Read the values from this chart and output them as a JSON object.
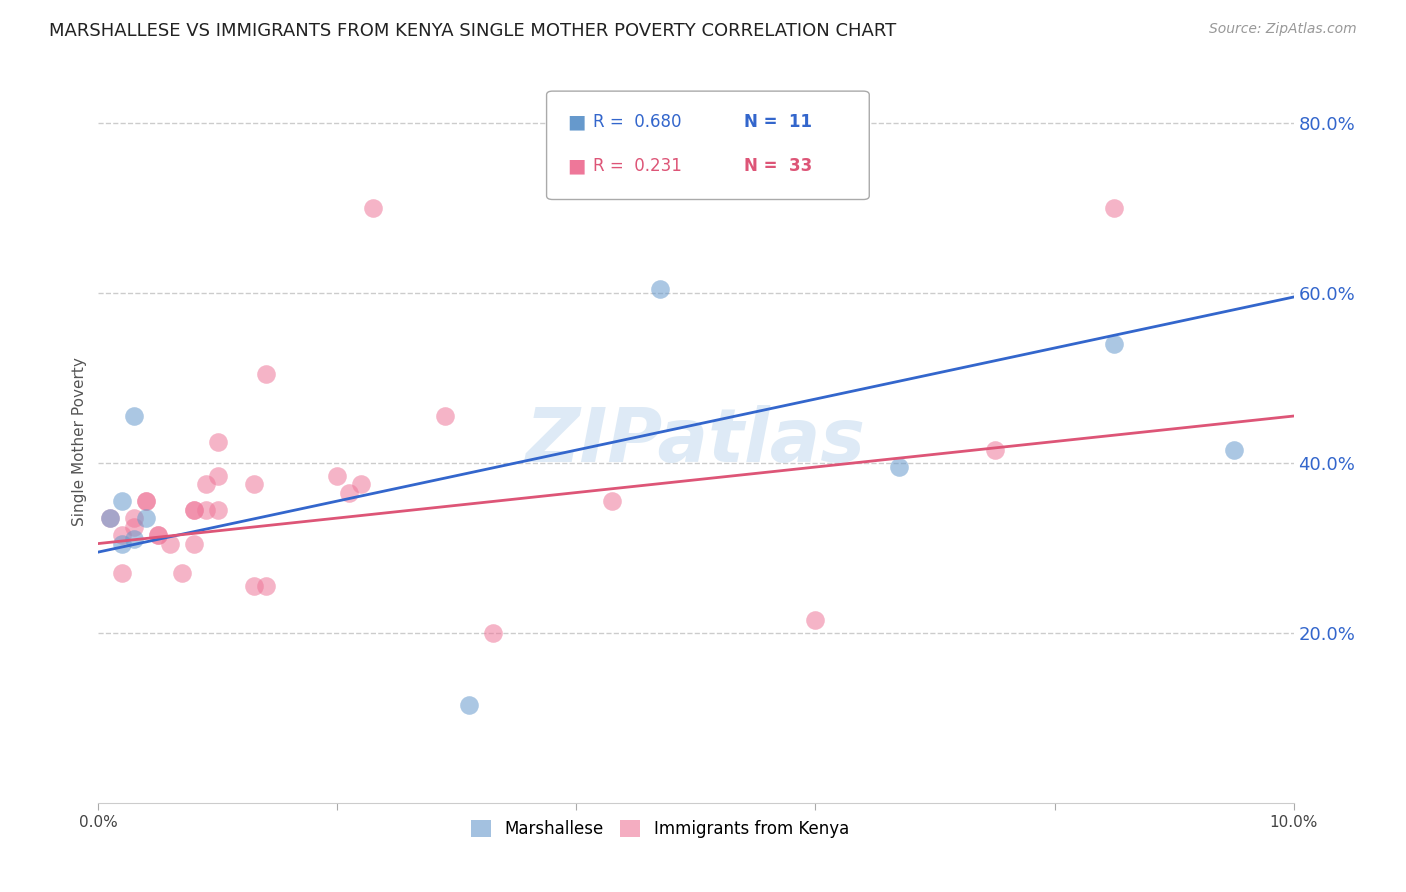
{
  "title": "MARSHALLESE VS IMMIGRANTS FROM KENYA SINGLE MOTHER POVERTY CORRELATION CHART",
  "source": "Source: ZipAtlas.com",
  "ylabel": "Single Mother Poverty",
  "watermark": "ZIPatlas",
  "legend_blue_r": "0.680",
  "legend_blue_n": "11",
  "legend_pink_r": "0.231",
  "legend_pink_n": "33",
  "blue_scatter_x": [
    0.001,
    0.002,
    0.002,
    0.003,
    0.003,
    0.004,
    0.031,
    0.047,
    0.067,
    0.085,
    0.095
  ],
  "blue_scatter_y": [
    0.335,
    0.305,
    0.355,
    0.455,
    0.31,
    0.335,
    0.115,
    0.605,
    0.395,
    0.54,
    0.415
  ],
  "pink_scatter_x": [
    0.001,
    0.002,
    0.002,
    0.003,
    0.003,
    0.004,
    0.004,
    0.005,
    0.005,
    0.006,
    0.007,
    0.008,
    0.008,
    0.008,
    0.009,
    0.009,
    0.01,
    0.01,
    0.01,
    0.013,
    0.013,
    0.014,
    0.014,
    0.02,
    0.021,
    0.022,
    0.023,
    0.029,
    0.033,
    0.043,
    0.06,
    0.075,
    0.085
  ],
  "pink_scatter_y": [
    0.335,
    0.27,
    0.315,
    0.335,
    0.325,
    0.355,
    0.355,
    0.315,
    0.315,
    0.305,
    0.27,
    0.305,
    0.345,
    0.345,
    0.345,
    0.375,
    0.345,
    0.425,
    0.385,
    0.375,
    0.255,
    0.255,
    0.505,
    0.385,
    0.365,
    0.375,
    0.7,
    0.455,
    0.2,
    0.355,
    0.215,
    0.415,
    0.7
  ],
  "blue_line_x": [
    0.0,
    0.1
  ],
  "blue_line_y": [
    0.295,
    0.595
  ],
  "pink_line_x": [
    0.0,
    0.1
  ],
  "pink_line_y": [
    0.305,
    0.455
  ],
  "xlim": [
    0.0,
    0.1
  ],
  "ylim": [
    0.0,
    0.85
  ],
  "yticks": [
    0.2,
    0.4,
    0.6,
    0.8
  ],
  "xtick_positions": [
    0.0,
    0.02,
    0.04,
    0.06,
    0.08,
    0.1
  ],
  "background_color": "#ffffff",
  "blue_color": "#6699cc",
  "pink_color": "#ee7799",
  "blue_line_color": "#3366cc",
  "pink_line_color": "#dd5577",
  "grid_color": "#cccccc",
  "right_axis_color": "#3366cc",
  "title_fontsize": 13,
  "source_fontsize": 10,
  "scatter_size": 180
}
